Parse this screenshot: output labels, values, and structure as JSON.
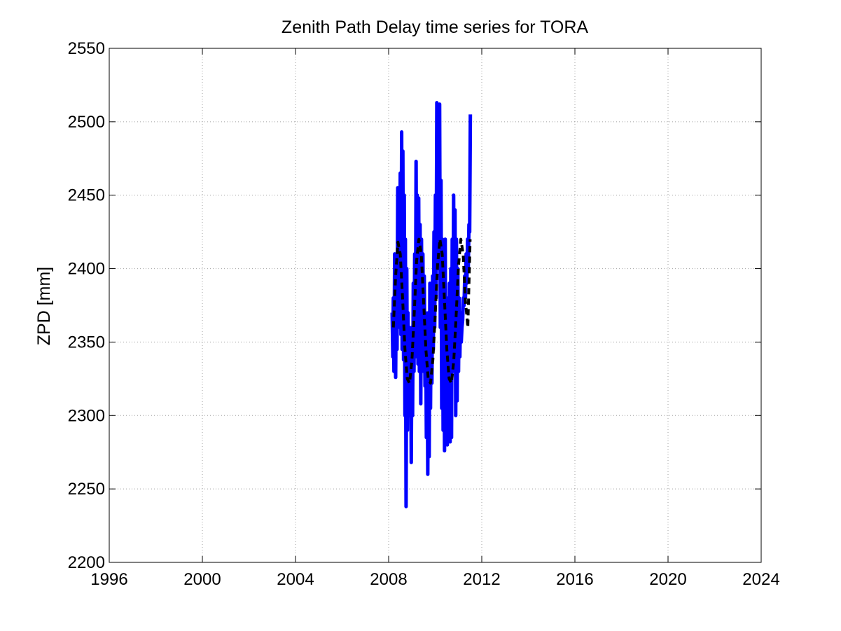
{
  "chart_data": {
    "type": "line",
    "title": "Zenith Path Delay time series for TORA",
    "xlabel": "",
    "ylabel": "ZPD [mm]",
    "xlim": [
      1996,
      2024
    ],
    "ylim": [
      2200,
      2550
    ],
    "xticks": [
      1996,
      2000,
      2004,
      2008,
      2012,
      2016,
      2020,
      2024
    ],
    "yticks": [
      2200,
      2250,
      2300,
      2350,
      2400,
      2450,
      2500,
      2550
    ],
    "grid": true,
    "legend": "none",
    "colors": {
      "observed": "#0000ff",
      "model": "#000000",
      "grid": "#a0a0a0",
      "axes": "#000000"
    },
    "series": [
      {
        "style": "solid",
        "x": [
          2008.15,
          2008.18,
          2008.2,
          2008.23,
          2008.26,
          2008.3,
          2008.33,
          2008.36,
          2008.39,
          2008.42,
          2008.45,
          2008.47,
          2008.5,
          2008.53,
          2008.56,
          2008.58,
          2008.61,
          2008.64,
          2008.67,
          2008.7,
          2008.72,
          2008.75,
          2008.78,
          2008.81,
          2008.83,
          2008.86,
          2008.89,
          2008.92,
          2008.95,
          2008.97,
          2009.0,
          2009.03,
          2009.06,
          2009.09,
          2009.12,
          2009.15,
          2009.18,
          2009.2,
          2009.23,
          2009.26,
          2009.29,
          2009.32,
          2009.35,
          2009.38,
          2009.41,
          2009.44,
          2009.47,
          2009.5,
          2009.53,
          2009.56,
          2009.59,
          2009.62,
          2009.65,
          2009.68,
          2009.71,
          2009.74,
          2009.77,
          2009.8,
          2009.83,
          2009.86,
          2009.89,
          2009.92,
          2009.95,
          2009.98,
          2010.01,
          2010.04,
          2010.07,
          2010.1,
          2010.13,
          2010.16,
          2010.19,
          2010.22,
          2010.25,
          2010.28,
          2010.31,
          2010.34,
          2010.37,
          2010.4,
          2010.43,
          2010.46,
          2010.49,
          2010.52,
          2010.55,
          2010.58,
          2010.61,
          2010.64,
          2010.67,
          2010.7,
          2010.73,
          2010.76,
          2010.79,
          2010.82,
          2010.85,
          2010.88,
          2010.91,
          2010.94,
          2010.97,
          2011.0,
          2011.03,
          2011.06,
          2011.09,
          2011.12,
          2011.15,
          2011.18,
          2011.21,
          2011.24,
          2011.27,
          2011.3,
          2011.33,
          2011.36,
          2011.39,
          2011.42,
          2011.45,
          2011.48,
          2011.51
        ],
        "values": [
          2370,
          2340,
          2380,
          2330,
          2410,
          2326,
          2405,
          2345,
          2455,
          2360,
          2440,
          2380,
          2465,
          2355,
          2493,
          2345,
          2480,
          2338,
          2450,
          2300,
          2420,
          2238,
          2400,
          2290,
          2370,
          2300,
          2360,
          2310,
          2345,
          2268,
          2360,
          2300,
          2390,
          2330,
          2410,
          2340,
          2473,
          2360,
          2450,
          2335,
          2448,
          2330,
          2430,
          2308,
          2420,
          2330,
          2410,
          2345,
          2395,
          2320,
          2370,
          2285,
          2365,
          2260,
          2370,
          2272,
          2390,
          2305,
          2380,
          2322,
          2395,
          2345,
          2425,
          2360,
          2450,
          2380,
          2513,
          2400,
          2500,
          2420,
          2512,
          2360,
          2460,
          2305,
          2420,
          2290,
          2410,
          2276,
          2420,
          2283,
          2380,
          2280,
          2360,
          2310,
          2390,
          2282,
          2400,
          2285,
          2420,
          2340,
          2450,
          2330,
          2440,
          2300,
          2420,
          2310,
          2400,
          2330,
          2380,
          2340,
          2370,
          2350,
          2360,
          2365,
          2380,
          2375,
          2395,
          2380,
          2410,
          2390,
          2420,
          2400,
          2430,
          2425,
          2505
        ]
      },
      {
        "style": "dashed",
        "x": [
          2008.2,
          2008.3,
          2008.4,
          2008.5,
          2008.6,
          2008.7,
          2008.8,
          2008.9,
          2009.0,
          2009.1,
          2009.2,
          2009.3,
          2009.4,
          2009.5,
          2009.6,
          2009.7,
          2009.8,
          2009.9,
          2010.0,
          2010.1,
          2010.2,
          2010.3,
          2010.4,
          2010.5,
          2010.6,
          2010.7,
          2010.8,
          2010.9,
          2011.0,
          2011.1,
          2011.2,
          2011.3,
          2011.4,
          2011.5
        ],
        "values": [
          2360,
          2395,
          2418,
          2410,
          2380,
          2345,
          2325,
          2322,
          2338,
          2370,
          2405,
          2420,
          2410,
          2378,
          2345,
          2325,
          2322,
          2338,
          2368,
          2402,
          2420,
          2410,
          2378,
          2345,
          2325,
          2322,
          2338,
          2368,
          2402,
          2420,
          2410,
          2378,
          2360,
          2420
        ]
      }
    ]
  }
}
